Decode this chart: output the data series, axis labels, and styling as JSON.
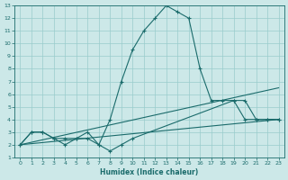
{
  "xlabel": "Humidex (Indice chaleur)",
  "bg_color": "#cce8e8",
  "grid_color": "#99cccc",
  "line_color": "#1a6b6b",
  "xlim": [
    -0.5,
    23.5
  ],
  "ylim": [
    1,
    13
  ],
  "xticks": [
    0,
    1,
    2,
    3,
    4,
    5,
    6,
    7,
    8,
    9,
    10,
    11,
    12,
    13,
    14,
    15,
    16,
    17,
    18,
    19,
    20,
    21,
    22,
    23
  ],
  "yticks": [
    1,
    2,
    3,
    4,
    5,
    6,
    7,
    8,
    9,
    10,
    11,
    12,
    13
  ],
  "line1_x": [
    0,
    1,
    2,
    3,
    4,
    5,
    6,
    7,
    8,
    9,
    10,
    11,
    12,
    13,
    14,
    15,
    16,
    17,
    18,
    19,
    20,
    21,
    22,
    23
  ],
  "line1_y": [
    2,
    3,
    3,
    2.5,
    2.5,
    2.5,
    3,
    2,
    4,
    7,
    9.5,
    11,
    12,
    13,
    12.5,
    12,
    8,
    5.5,
    5.5,
    5.5,
    4,
    4,
    4,
    4
  ],
  "line2_x": [
    0,
    1,
    2,
    3,
    4,
    5,
    6,
    7,
    8,
    9,
    10,
    19,
    20,
    21,
    22,
    23
  ],
  "line2_y": [
    2,
    3,
    3,
    2.5,
    2,
    2.5,
    2.5,
    2,
    1.5,
    2,
    2.5,
    5.5,
    5.5,
    4,
    4,
    4
  ],
  "line3_x": [
    0,
    23
  ],
  "line3_y": [
    2,
    6.5
  ],
  "line4_x": [
    0,
    23
  ],
  "line4_y": [
    2,
    4
  ]
}
